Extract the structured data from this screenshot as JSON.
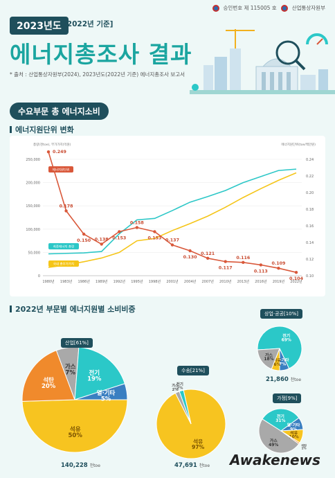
{
  "header": {
    "approval_text": "승인번호 제 115005 호",
    "ministry": "산업통상자원부",
    "year_label": "2023년도",
    "basis_label": "[2022년 기준]",
    "title": "에너지총조사 결과",
    "source_note": "* 출처 : 산업통상자원부(2024), 2023년도(2022년 기준) 에너지총조사 보고서"
  },
  "section1": {
    "pill": "수요부문 총 에너지소비",
    "heading": "에너지원단위 변화",
    "left_axis_note": "총량(천toe), 부가가치(억원)",
    "right_axis_note": "에너지원단위(toe/백만원)"
  },
  "chart_data": [
    {
      "type": "line",
      "title": "에너지원단위 변화",
      "x": [
        "1980년",
        "1983년",
        "1986년",
        "1989년",
        "1992년",
        "1995년",
        "1998년",
        "2001년",
        "2004년",
        "2007년",
        "2010년",
        "2013년",
        "2016년",
        "2019년",
        "2022년"
      ],
      "ylim_left": [
        0,
        250000
      ],
      "yticks_left": [
        "0",
        "50,000",
        "100,000",
        "150,000",
        "200,000",
        "250,000"
      ],
      "ylim_right": [
        0.1,
        0.24
      ],
      "yticks_right": [
        "0.10",
        "0.12",
        "0.14",
        "0.16",
        "0.18",
        "0.20",
        "0.22",
        "0.24"
      ],
      "series": [
        {
          "name": "에너지원단위",
          "axis": "right",
          "color": "#d9583a",
          "values": [
            0.249,
            0.178,
            0.15,
            0.138,
            0.153,
            0.158,
            0.153,
            0.137,
            0.13,
            0.121,
            0.117,
            0.116,
            0.113,
            0.109,
            0.104
          ],
          "labels": [
            "0.249",
            "0.178",
            "0.150",
            "0.138",
            "0.153",
            "0.158",
            "0.153",
            "0.137",
            "0.130",
            "0.121",
            "0.117",
            "0.116",
            "0.113",
            "0.109",
            "0.104"
          ]
        },
        {
          "name": "최종에너지 총량",
          "axis": "left",
          "color": "#2cc7c7",
          "values": [
            47000,
            48000,
            49000,
            52000,
            90000,
            120000,
            123000,
            140000,
            158000,
            170000,
            183000,
            200000,
            213000,
            226000,
            229000
          ]
        },
        {
          "name": "국내 총부가가치",
          "axis": "left",
          "color": "#f5c518",
          "values": [
            18000,
            23000,
            30000,
            38000,
            50000,
            75000,
            80000,
            97000,
            112000,
            128000,
            147000,
            168000,
            187000,
            205000,
            221000
          ]
        }
      ]
    },
    {
      "type": "pie",
      "title": "산업[61%]",
      "total": "140,228",
      "unit": "천toe",
      "slices": [
        {
          "label": "석유",
          "value": 50,
          "color": "#f7c420"
        },
        {
          "label": "석탄",
          "value": 20,
          "color": "#f08a2c"
        },
        {
          "label": "가스",
          "value": 7,
          "color": "#a9a9a9"
        },
        {
          "label": "전기",
          "value": 19,
          "color": "#2bc8c8"
        },
        {
          "label": "열·기타",
          "value": 5,
          "color": "#3a7fc1"
        }
      ]
    },
    {
      "type": "pie",
      "title": "수송[21%]",
      "total": "47,691",
      "unit": "천toe",
      "slices": [
        {
          "label": "석유",
          "value": 97,
          "color": "#f7c420"
        },
        {
          "label": "가스",
          "value": 2,
          "color": "#a9a9a9"
        },
        {
          "label": "전기",
          "value": 2,
          "color": "#2bc8c8"
        }
      ]
    },
    {
      "type": "pie",
      "title": "상업·공공[10%]",
      "total": "21,860",
      "unit": "천toe",
      "slices": [
        {
          "label": "전기",
          "value": 69,
          "color": "#2bc8c8"
        },
        {
          "label": "열·기타",
          "value": 7,
          "color": "#3a7fc1"
        },
        {
          "label": "석유",
          "value": 6,
          "color": "#f7c420"
        },
        {
          "label": "가스",
          "value": 18,
          "color": "#a9a9a9"
        }
      ]
    },
    {
      "type": "pie",
      "title": "가정[9%]",
      "slices": [
        {
          "label": "가스",
          "value": 49,
          "color": "#a9a9a9"
        },
        {
          "label": "전기",
          "value": 31,
          "color": "#2bc8c8"
        },
        {
          "label": "열·기타",
          "value": 9,
          "color": "#3a7fc1"
        },
        {
          "label": "석유",
          "value": 10,
          "color": "#f7c420"
        },
        {
          "label": "석탄",
          "value": 1,
          "color": "#f08a2c"
        }
      ]
    }
  ],
  "section2": {
    "heading": "2022년 부문별 에너지원별 소비비중"
  },
  "watermark": "Awakenews"
}
